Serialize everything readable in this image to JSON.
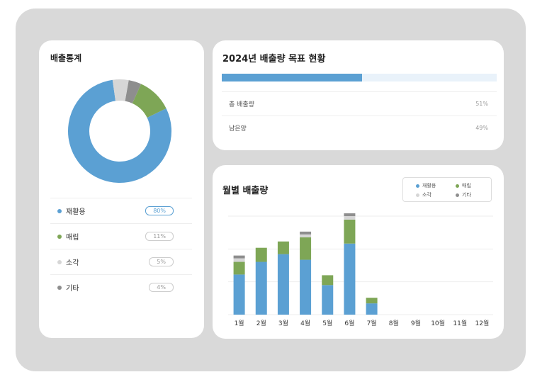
{
  "colors": {
    "recycle": "#5ba0d3",
    "landfill": "#7ea656",
    "incineration": "#d6d6d6",
    "other": "#8e8e8e"
  },
  "stats_card": {
    "title": "배출통계",
    "legend": [
      {
        "label": "재활용",
        "pct": "80%",
        "color": "#5ba0d3",
        "value": 80
      },
      {
        "label": "매립",
        "pct": "11%",
        "color": "#7ea656",
        "value": 11
      },
      {
        "label": "소각",
        "pct": "5%",
        "color": "#d6d6d6",
        "value": 5
      },
      {
        "label": "기타",
        "pct": "4%",
        "color": "#8e8e8e",
        "value": 4
      }
    ]
  },
  "goal_card": {
    "title": "2024년 배출량 목표 현황",
    "progress": 0.51,
    "rows": [
      {
        "label": "총 배출량",
        "value": "51%"
      },
      {
        "label": "남은양",
        "value": "49%"
      }
    ]
  },
  "chart_data": {
    "type": "bar",
    "stacked": true,
    "title": "월별 배출량",
    "categories": [
      "1월",
      "2월",
      "3월",
      "4월",
      "5월",
      "6월",
      "7월",
      "8월",
      "9월",
      "10월",
      "11월",
      "12월"
    ],
    "series": [
      {
        "name": "재활용",
        "color": "#5ba0d3",
        "values": [
          57,
          75,
          86,
          78,
          42,
          101,
          16,
          0,
          0,
          0,
          0,
          0
        ]
      },
      {
        "name": "매립",
        "color": "#7ea656",
        "values": [
          18,
          20,
          18,
          32,
          14,
          34,
          8,
          0,
          0,
          0,
          0,
          0
        ]
      },
      {
        "name": "소각",
        "color": "#d6d6d6",
        "values": [
          5,
          0,
          0,
          4,
          0,
          5,
          0,
          0,
          0,
          0,
          0,
          0
        ]
      },
      {
        "name": "기타",
        "color": "#8e8e8e",
        "values": [
          4,
          0,
          0,
          4,
          0,
          4,
          0,
          0,
          0,
          0,
          0,
          0
        ]
      }
    ],
    "ylim": [
      0,
      140
    ],
    "grid": true,
    "legend_position": "top-right"
  }
}
